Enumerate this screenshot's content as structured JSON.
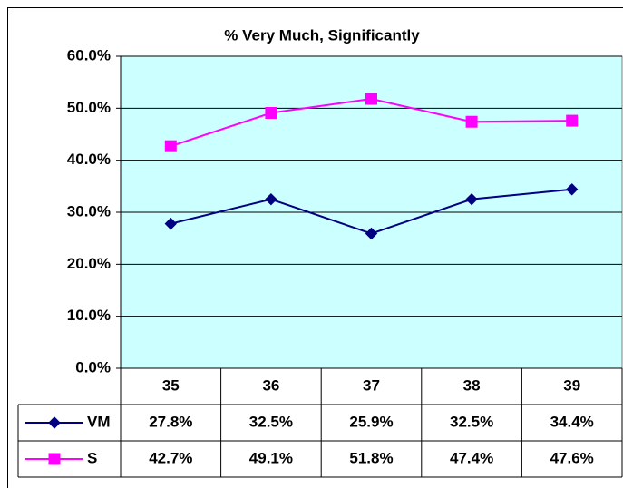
{
  "chart_data": {
    "type": "line",
    "title": "% Very Much, Significantly",
    "categories": [
      "35",
      "36",
      "37",
      "38",
      "39"
    ],
    "series": [
      {
        "name": "VM",
        "color": "#000080",
        "marker": "diamond",
        "values": [
          27.8,
          32.5,
          25.9,
          32.5,
          34.4
        ],
        "value_labels": [
          "27.8%",
          "32.5%",
          "25.9%",
          "32.5%",
          "34.4%"
        ]
      },
      {
        "name": "S",
        "color": "#ff00ff",
        "marker": "square",
        "values": [
          42.7,
          49.1,
          51.8,
          47.4,
          47.6
        ],
        "value_labels": [
          "42.7%",
          "49.1%",
          "51.8%",
          "47.4%",
          "47.6%"
        ]
      }
    ],
    "ylim": [
      0,
      60
    ],
    "yticks": [
      {
        "value": 0,
        "label": "0.0%"
      },
      {
        "value": 10,
        "label": "10.0%"
      },
      {
        "value": 20,
        "label": "20.0%"
      },
      {
        "value": 30,
        "label": "30.0%"
      },
      {
        "value": 40,
        "label": "40.0%"
      },
      {
        "value": 50,
        "label": "50.0%"
      },
      {
        "value": 60,
        "label": "60.0%"
      }
    ],
    "grid": true,
    "plot_background": "#ccffff"
  }
}
